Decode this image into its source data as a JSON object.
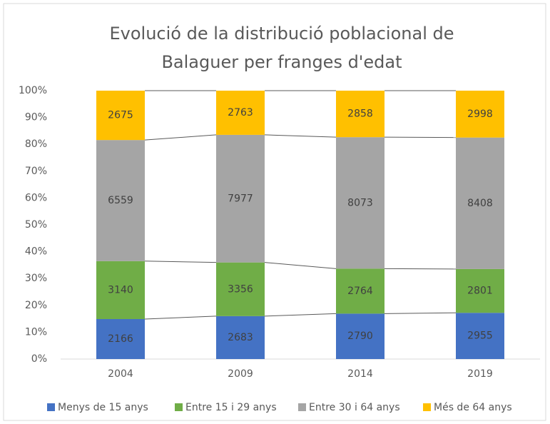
{
  "chart_data": {
    "type": "bar",
    "stacked": "percent",
    "title": [
      "Evolució de la distribució poblacional de",
      "Balaguer per franges d'edat"
    ],
    "categories": [
      "2004",
      "2009",
      "2014",
      "2019"
    ],
    "series": [
      {
        "name": "Menys de 15 anys",
        "color": "#4472c4",
        "values": [
          2166,
          2683,
          2790,
          2955
        ]
      },
      {
        "name": "Entre 15 i 29 anys",
        "color": "#70ad47",
        "values": [
          3140,
          3356,
          2764,
          2801
        ]
      },
      {
        "name": "Entre 30 i 64 anys",
        "color": "#a5a5a5",
        "values": [
          6559,
          7977,
          8073,
          8408
        ]
      },
      {
        "name": "Més de 64 anys",
        "color": "#ffc000",
        "values": [
          2675,
          2763,
          2858,
          2998
        ]
      }
    ],
    "ylim": [
      0,
      100
    ],
    "yticks": [
      {
        "value": 0,
        "label": "0%"
      },
      {
        "value": 10,
        "label": "10%"
      },
      {
        "value": 20,
        "label": "20%"
      },
      {
        "value": 30,
        "label": "30%"
      },
      {
        "value": 40,
        "label": "40%"
      },
      {
        "value": 50,
        "label": "50%"
      },
      {
        "value": 60,
        "label": "60%"
      },
      {
        "value": 70,
        "label": "70%"
      },
      {
        "value": 80,
        "label": "80%"
      },
      {
        "value": 90,
        "label": "90%"
      },
      {
        "value": 100,
        "label": "100%"
      }
    ],
    "grid": false,
    "legend": "bottom"
  }
}
